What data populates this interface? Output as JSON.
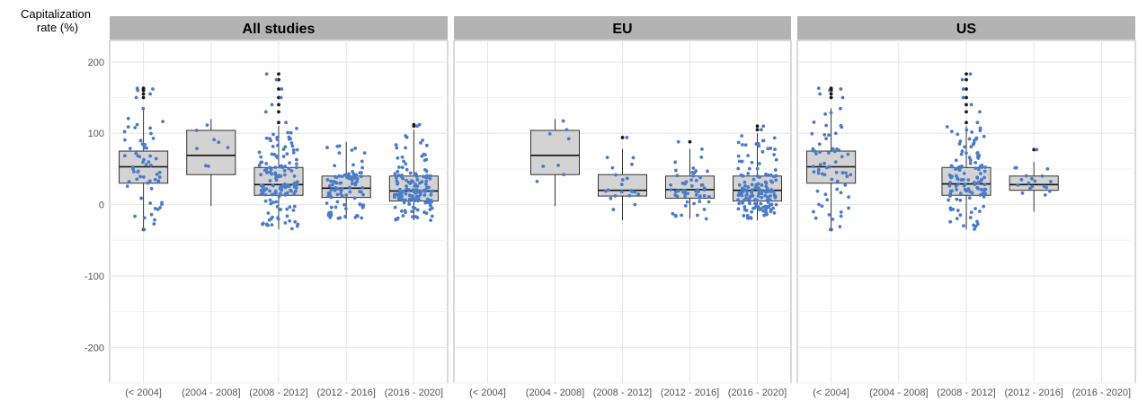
{
  "chart_data": {
    "type": "boxplot",
    "ylabel_lines": [
      "Capitalization",
      "rate (%)"
    ],
    "ylim": [
      -250,
      230
    ],
    "yticks": [
      -200,
      -100,
      0,
      100,
      200
    ],
    "categories": [
      "(< 2004]",
      "(2004 - 2008]",
      "(2008 - 2012]",
      "(2012 - 2016]",
      "(2016 - 2020]"
    ],
    "point_color": "#4a7cc9",
    "outlier_color": "#1a1a1a",
    "box_fill": "#d3d3d3",
    "strip_fill": "#b3b3b3",
    "grid": true,
    "panels": [
      {
        "name": "All studies",
        "boxes": [
          {
            "category": "(< 2004]",
            "whisker_low": -35,
            "q1": 30,
            "median": 53,
            "q3": 75,
            "whisker_high": 135,
            "n": 60,
            "outliers": [
              150,
              155,
              160,
              162,
              163,
              -35
            ]
          },
          {
            "category": "(2004 - 2008]",
            "whisker_low": -2,
            "q1": 42,
            "median": 69,
            "q3": 104,
            "whisker_high": 120,
            "n": 8,
            "outliers": []
          },
          {
            "category": "(2008 - 2012]",
            "whisker_low": -35,
            "q1": 13,
            "median": 28,
            "q3": 52,
            "whisker_high": 110,
            "n": 140,
            "outliers": [
              115,
              130,
              140,
              150,
              162,
              175,
              183
            ]
          },
          {
            "category": "(2012 - 2016]",
            "whisker_low": -20,
            "q1": 10,
            "median": 23,
            "q3": 40,
            "whisker_high": 88,
            "n": 90,
            "outliers": []
          },
          {
            "category": "(2016 - 2020]",
            "whisker_low": -22,
            "q1": 5,
            "median": 19,
            "q3": 40,
            "whisker_high": 105,
            "n": 150,
            "outliers": [
              110,
              112
            ]
          }
        ]
      },
      {
        "name": "EU",
        "boxes": [
          {
            "category": "(2004 - 2008]",
            "whisker_low": -2,
            "q1": 42,
            "median": 69,
            "q3": 104,
            "whisker_high": 120,
            "n": 8,
            "outliers": []
          },
          {
            "category": "(2008 - 2012]",
            "whisker_low": -22,
            "q1": 12,
            "median": 20,
            "q3": 42,
            "whisker_high": 78,
            "n": 20,
            "outliers": [
              94
            ]
          },
          {
            "category": "(2012 - 2016]",
            "whisker_low": -20,
            "q1": 9,
            "median": 21,
            "q3": 40,
            "whisker_high": 78,
            "n": 55,
            "outliers": [
              88
            ]
          },
          {
            "category": "(2016 - 2020]",
            "whisker_low": -22,
            "q1": 5,
            "median": 20,
            "q3": 40,
            "whisker_high": 100,
            "n": 150,
            "outliers": [
              105,
              110
            ]
          }
        ]
      },
      {
        "name": "US",
        "boxes": [
          {
            "category": "(< 2004]",
            "whisker_low": -35,
            "q1": 30,
            "median": 53,
            "q3": 75,
            "whisker_high": 135,
            "n": 60,
            "outliers": [
              150,
              155,
              160,
              162,
              163,
              -35
            ]
          },
          {
            "category": "(2008 - 2012]",
            "whisker_low": -35,
            "q1": 13,
            "median": 29,
            "q3": 52,
            "whisker_high": 110,
            "n": 120,
            "outliers": [
              115,
              130,
              140,
              150,
              162,
              175,
              183
            ]
          },
          {
            "category": "(2012 - 2016]",
            "whisker_low": -10,
            "q1": 20,
            "median": 28,
            "q3": 40,
            "whisker_high": 60,
            "n": 18,
            "outliers": [
              77
            ]
          }
        ]
      }
    ]
  }
}
